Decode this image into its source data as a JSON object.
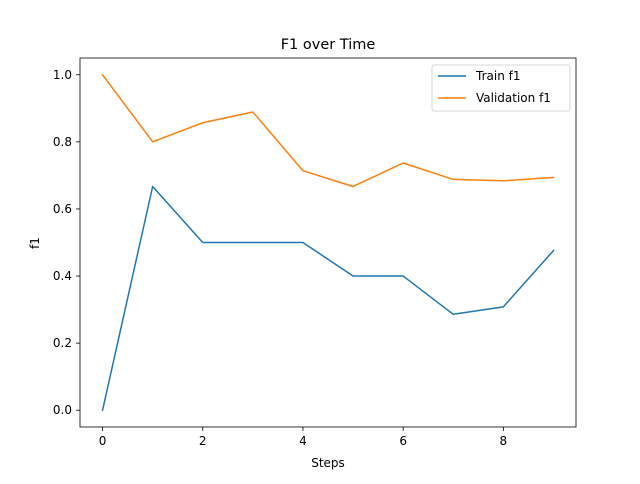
{
  "chart_data": {
    "type": "line",
    "title": "F1 over Time",
    "xlabel": "Steps",
    "ylabel": "f1",
    "xlim": [
      -0.45,
      9.45
    ],
    "ylim": [
      -0.05,
      1.05
    ],
    "xticks": [
      0,
      2,
      4,
      6,
      8
    ],
    "xtick_labels": [
      "0",
      "2",
      "4",
      "6",
      "8"
    ],
    "yticks": [
      0.0,
      0.2,
      0.4,
      0.6,
      0.8,
      1.0
    ],
    "ytick_labels": [
      "0.0",
      "0.2",
      "0.4",
      "0.6",
      "0.8",
      "1.0"
    ],
    "grid": false,
    "legend_position": "top-right",
    "x": [
      0,
      1,
      2,
      3,
      4,
      5,
      6,
      7,
      8,
      9
    ],
    "series": [
      {
        "name": "Train f1",
        "color": "#1f77b4",
        "values": [
          0.0,
          0.667,
          0.5,
          0.5,
          0.5,
          0.4,
          0.4,
          0.286,
          0.308,
          0.476
        ]
      },
      {
        "name": "Validation f1",
        "color": "#ff7f0e",
        "values": [
          1.0,
          0.8,
          0.857,
          0.889,
          0.714,
          0.667,
          0.737,
          0.688,
          0.684,
          0.694
        ]
      }
    ]
  }
}
